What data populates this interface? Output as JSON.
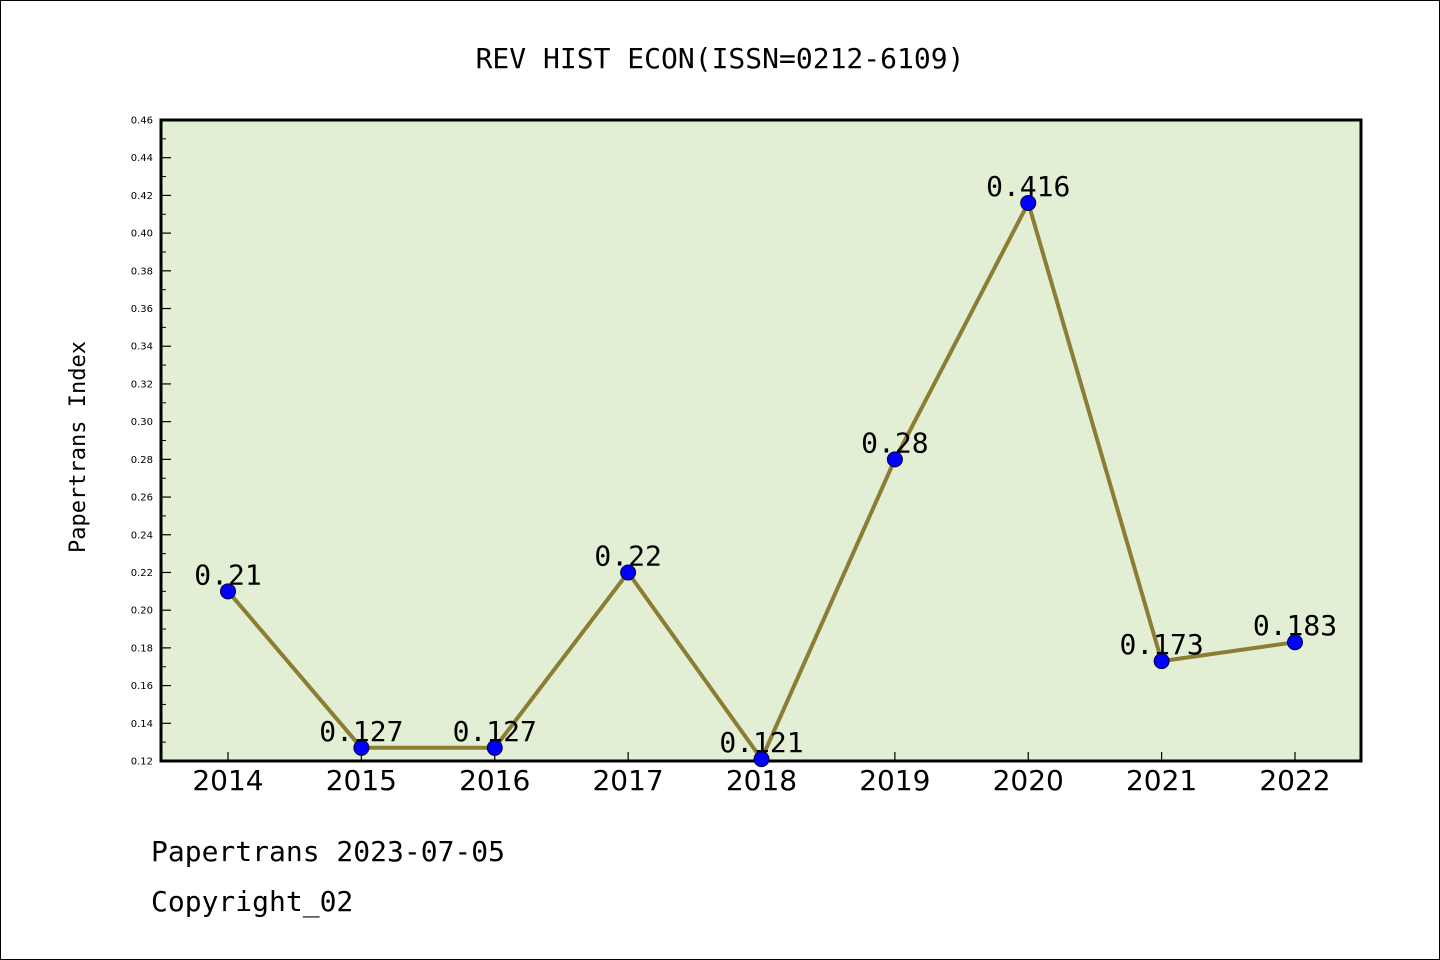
{
  "chart_data": {
    "type": "line",
    "title": "REV HIST ECON(ISSN=0212-6109)",
    "ylabel": "Papertrans Index",
    "xlabel": "",
    "categories": [
      "2014",
      "2015",
      "2016",
      "2017",
      "2018",
      "2019",
      "2020",
      "2021",
      "2022"
    ],
    "values": [
      0.21,
      0.127,
      0.127,
      0.22,
      0.121,
      0.28,
      0.416,
      0.173,
      0.183
    ],
    "data_labels": [
      "0.21",
      "0.127",
      "0.127",
      "0.22",
      "0.121",
      "0.28",
      "0.416",
      "0.173",
      "0.183"
    ],
    "ylim": [
      0.12,
      0.46
    ],
    "yticks": [
      "0.12",
      "0.14",
      "0.16",
      "0.18",
      "0.20",
      "0.22",
      "0.24",
      "0.26",
      "0.28",
      "0.30",
      "0.32",
      "0.34",
      "0.36",
      "0.38",
      "0.40",
      "0.42",
      "0.44",
      "0.46"
    ],
    "grid": false,
    "colors": {
      "plot_background": "#e2efd4",
      "line": "#8b7d34",
      "marker": "#0000ff"
    }
  },
  "footer": {
    "line1": "Papertrans 2023-07-05",
    "line2": "Copyright_02"
  }
}
